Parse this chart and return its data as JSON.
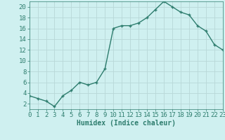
{
  "x": [
    0,
    1,
    2,
    3,
    4,
    5,
    6,
    7,
    8,
    9,
    10,
    11,
    12,
    13,
    14,
    15,
    16,
    17,
    18,
    19,
    20,
    21,
    22,
    23
  ],
  "y": [
    3.5,
    3.0,
    2.5,
    1.5,
    3.5,
    4.5,
    6.0,
    5.5,
    6.0,
    8.5,
    16.0,
    16.5,
    16.5,
    17.0,
    18.0,
    19.5,
    21.0,
    20.0,
    19.0,
    18.5,
    16.5,
    15.5,
    13.0,
    12.0
  ],
  "line_color": "#2e7d6e",
  "marker": "+",
  "marker_size": 3.5,
  "line_width": 1.0,
  "bg_color": "#cff0f0",
  "grid_color": "#b8d8d8",
  "xlabel": "Humidex (Indice chaleur)",
  "xlabel_fontsize": 7,
  "yticks": [
    2,
    4,
    6,
    8,
    10,
    12,
    14,
    16,
    18,
    20
  ],
  "xlim": [
    0,
    23
  ],
  "ylim": [
    1,
    21
  ],
  "tick_fontsize": 6.5
}
